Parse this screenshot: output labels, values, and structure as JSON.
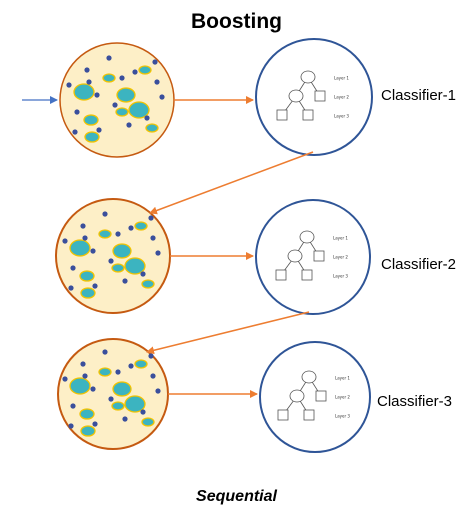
{
  "title": "Boosting",
  "footer": "Sequential",
  "stages": [
    {
      "label": "Classifier-1"
    },
    {
      "label": "Classifier-2"
    },
    {
      "label": "Classifier-3"
    }
  ],
  "tree_layers": [
    "Layer 1",
    "Layer 2",
    "Layer 3"
  ],
  "colors": {
    "arrow": "#ED7D31",
    "input_arrow": "#4472C4",
    "classifier_ring": "#2F5597",
    "dataset_fill": "#FDEFC7",
    "dataset_ring": "#C55A11",
    "dot": "#3A4F9C",
    "blob_fill": "#3CB4C0",
    "blob_ring": "#F2C300"
  }
}
